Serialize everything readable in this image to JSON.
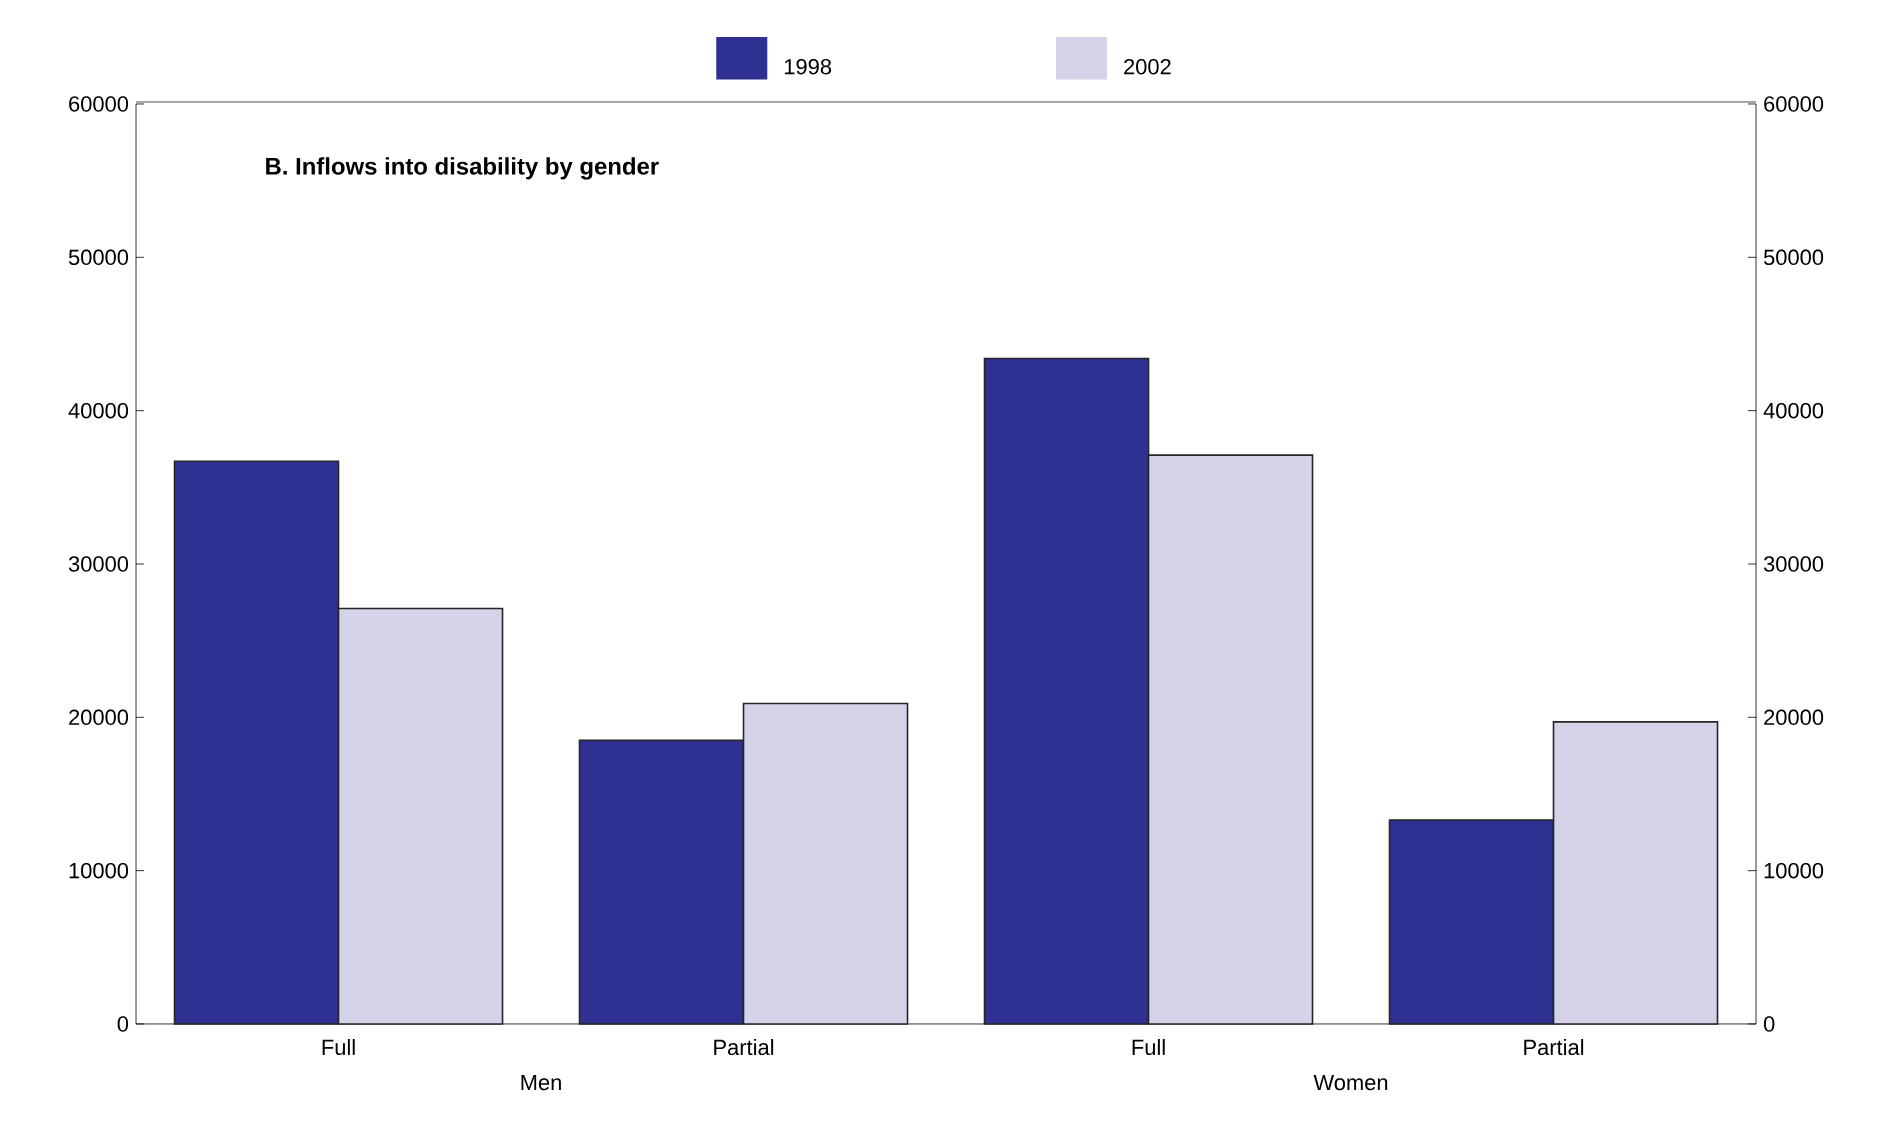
{
  "chart_data": {
    "type": "bar",
    "title": "B. Inflows into disability by gender",
    "categories": [
      "Full",
      "Partial",
      "Full",
      "Partial"
    ],
    "annotations": [
      "Men",
      "Women"
    ],
    "series": [
      {
        "name": "1998",
        "color": "#2e3192",
        "values": [
          36700,
          18500,
          43400,
          13300
        ]
      },
      {
        "name": "2002",
        "color": "#d4d3ea",
        "values": [
          27100,
          20900,
          37100,
          19700
        ]
      }
    ],
    "ylim": [
      0,
      60000
    ],
    "yticks": [
      0,
      10000,
      20000,
      30000,
      40000,
      50000,
      60000
    ],
    "y2lim": [
      0,
      60000
    ],
    "y2ticks": [
      0,
      10000,
      20000,
      30000,
      40000,
      50000,
      60000
    ],
    "legend": "top",
    "grid": false
  }
}
